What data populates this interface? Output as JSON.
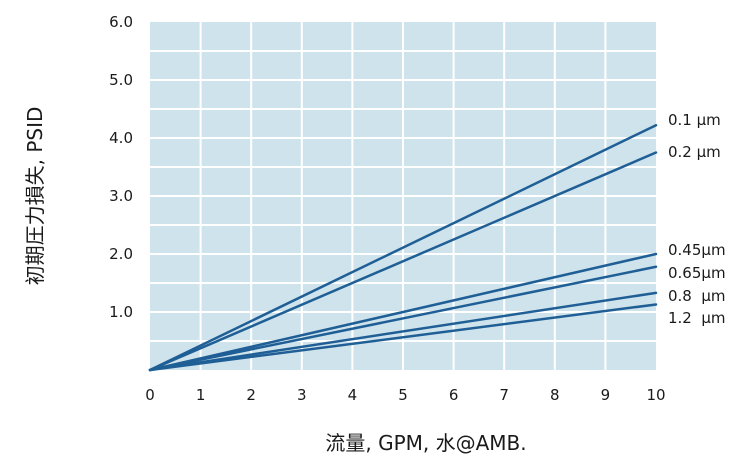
{
  "chart_data": {
    "type": "line",
    "title": "",
    "xlabel": "流量, GPM, 水@AMB.",
    "ylabel": "初期圧力損失, PSID",
    "xlim": [
      0,
      10
    ],
    "ylim": [
      0,
      6
    ],
    "xticks": [
      "0",
      "1",
      "2",
      "3",
      "4",
      "5",
      "6",
      "7",
      "8",
      "9",
      "10"
    ],
    "yticks": [
      "1.0",
      "2.0",
      "3.0",
      "4.0",
      "5.0",
      "6.0"
    ],
    "grid": true,
    "colors": {
      "plot_background": "#cfe3ec",
      "grid": "#ffffff",
      "line": "#1f5f96"
    },
    "series": [
      {
        "name": "0.1 µm",
        "x": [
          0,
          10
        ],
        "y": [
          0,
          4.22
        ]
      },
      {
        "name": "0.2 µm",
        "x": [
          0,
          10
        ],
        "y": [
          0,
          3.75
        ]
      },
      {
        "name": "0.45µm",
        "x": [
          0,
          10
        ],
        "y": [
          0,
          2.0
        ]
      },
      {
        "name": "0.65µm",
        "x": [
          0,
          10
        ],
        "y": [
          0,
          1.78
        ]
      },
      {
        "name": "0.8  µm",
        "x": [
          0,
          10
        ],
        "y": [
          0,
          1.33
        ]
      },
      {
        "name": "1.2  µm",
        "x": [
          0,
          10
        ],
        "y": [
          0,
          1.13
        ]
      }
    ]
  }
}
